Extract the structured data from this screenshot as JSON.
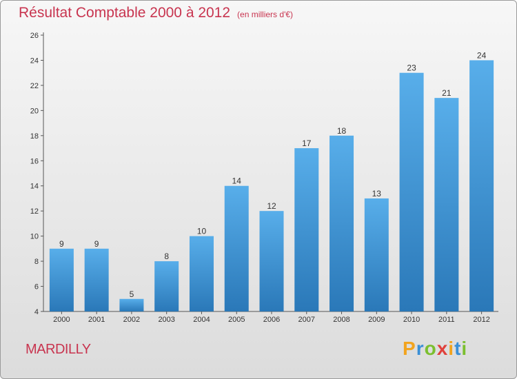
{
  "title": "Résultat Comptable 2000 à 2012",
  "unit_label": "(en milliers d'€)",
  "commune": "MARDILLY",
  "logo": {
    "letters": [
      "P",
      "r",
      "o",
      "x",
      "i",
      "t",
      "i"
    ],
    "colors": [
      "#f2a41e",
      "#3a8fd6",
      "#7bbf2f",
      "#e0413c",
      "#f2a41e",
      "#3a8fd6",
      "#7bbf2f"
    ]
  },
  "colors": {
    "accent": "#c8344f",
    "bar_top": "#58aeea",
    "bar_bottom": "#2a78b8"
  },
  "chart_data": {
    "type": "bar",
    "categories": [
      "2000",
      "2001",
      "2002",
      "2003",
      "2004",
      "2005",
      "2006",
      "2007",
      "2008",
      "2009",
      "2010",
      "2011",
      "2012"
    ],
    "values": [
      9,
      9,
      5,
      8,
      10,
      14,
      12,
      17,
      18,
      13,
      23,
      21,
      24
    ],
    "ylim": [
      4,
      26
    ],
    "yticks": [
      4,
      6,
      8,
      10,
      12,
      14,
      16,
      18,
      20,
      22,
      24,
      26
    ],
    "grid": false
  }
}
